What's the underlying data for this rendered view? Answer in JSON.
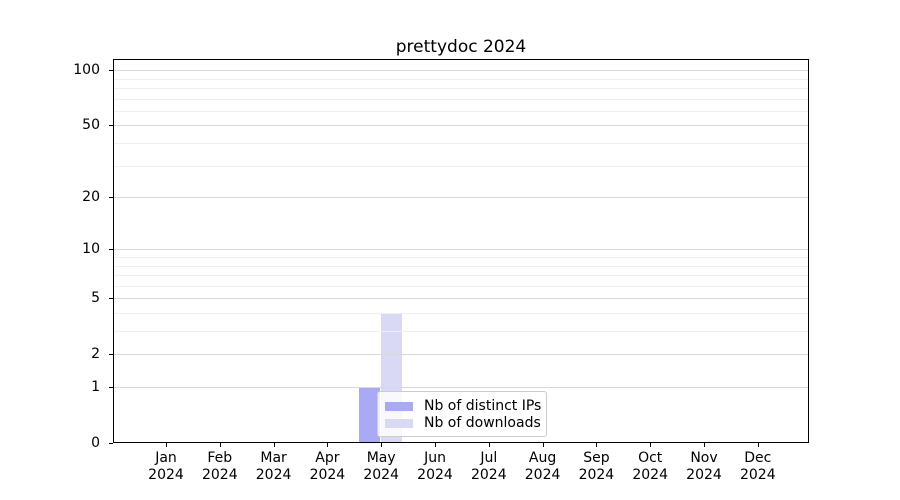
{
  "chart_data": {
    "type": "bar",
    "title": "prettydoc 2024",
    "categories": [
      "Jan",
      "Feb",
      "Mar",
      "Apr",
      "May",
      "Jun",
      "Jul",
      "Aug",
      "Sep",
      "Oct",
      "Nov",
      "Dec"
    ],
    "x_year_label": "2024",
    "series": [
      {
        "name": "Nb of distinct IPs",
        "color": "#a9a9f4",
        "values": [
          0,
          0,
          0,
          0,
          1,
          0,
          0,
          0,
          0,
          0,
          0,
          0
        ]
      },
      {
        "name": "Nb of downloads",
        "color": "#d9d9f6",
        "values": [
          0,
          0,
          0,
          0,
          4,
          0,
          0,
          0,
          0,
          0,
          0,
          0
        ]
      }
    ],
    "yscale": "log1p",
    "ylim": [
      0,
      115
    ],
    "y_ticks": [
      0,
      1,
      2,
      5,
      10,
      20,
      50,
      100
    ],
    "y_minor_gridlines": [
      3,
      4,
      6,
      7,
      8,
      9,
      30,
      40,
      60,
      70,
      80,
      90
    ],
    "grid": "horizontal",
    "legend_position": "inside-bottom-center",
    "colors": {
      "axis": "#000000",
      "grid_major": "#d8d8d8",
      "grid_minor": "#efefef",
      "legend_border": "#cccccc",
      "background": "#ffffff"
    }
  }
}
